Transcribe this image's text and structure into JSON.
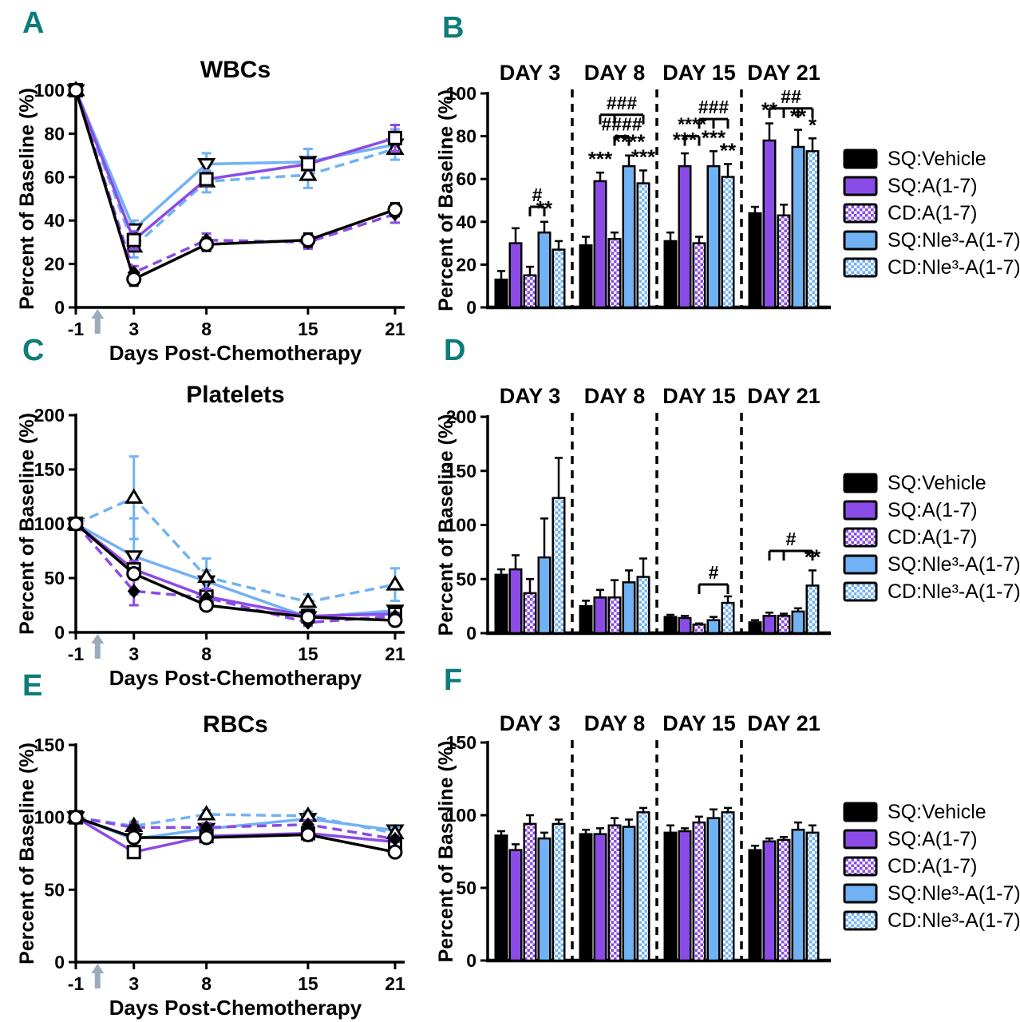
{
  "colors": {
    "purple": "#8b4be6",
    "blue": "#71b2f4",
    "teal": "#0d7c7a",
    "arrow": "#9aacbc",
    "black": "#000000"
  },
  "panel_letters": {
    "a": "A",
    "b": "B",
    "c": "C",
    "d": "D",
    "e": "E",
    "f": "F"
  },
  "legend": {
    "items": [
      {
        "label": "SQ:Vehicle",
        "swatch": "black"
      },
      {
        "label": "SQ:A(1-7)",
        "swatch": "purple"
      },
      {
        "label": "CD:A(1-7)",
        "swatch": "purple-check"
      },
      {
        "label": "SQ:Nle³-A(1-7)",
        "swatch": "blue"
      },
      {
        "label": "CD:Nle³-A(1-7)",
        "swatch": "blue-check"
      }
    ]
  },
  "chart_data": [
    {
      "id": "A",
      "type": "line",
      "title": "WBCs",
      "xlabel": "Days Post-Chemotherapy",
      "ylabel": "Percent of Baseline (%)",
      "x": [
        -1,
        3,
        8,
        15,
        21
      ],
      "xticklabels": [
        "-1",
        "3",
        "8",
        "15",
        "21"
      ],
      "ylim": [
        0,
        100
      ],
      "yticks": [
        0,
        20,
        40,
        60,
        80,
        100
      ],
      "arrow_day": 0.5,
      "series": [
        {
          "name": "SQ:Vehicle",
          "color": "black",
          "style": "solid",
          "marker": "circle-open",
          "values": [
            100,
            13,
            29,
            31,
            45
          ],
          "errors": [
            0,
            3,
            3,
            3,
            3
          ]
        },
        {
          "name": "SQ:A(1-7)",
          "color": "purple",
          "style": "solid",
          "marker": "square-open",
          "values": [
            100,
            31,
            59,
            66,
            78
          ],
          "errors": [
            0,
            4,
            3,
            3,
            6
          ]
        },
        {
          "name": "CD:A(1-7)",
          "color": "purple",
          "style": "dashed",
          "marker": "diamond-filled",
          "values": [
            100,
            16,
            31,
            30,
            43
          ],
          "errors": [
            0,
            3,
            3,
            3,
            4
          ]
        },
        {
          "name": "SQ:Nle³-A(1-7)",
          "color": "blue",
          "style": "solid",
          "marker": "triangle-down-open",
          "values": [
            100,
            36,
            66,
            67,
            75
          ],
          "errors": [
            0,
            4,
            5,
            6,
            7
          ]
        },
        {
          "name": "CD:Nle³-A(1-7)",
          "color": "blue",
          "style": "dashed",
          "marker": "triangle-up-open",
          "values": [
            100,
            28,
            58,
            61,
            73
          ],
          "errors": [
            0,
            5,
            5,
            6,
            5
          ]
        }
      ]
    },
    {
      "id": "B",
      "type": "bar",
      "ylabel": "Percent of Baseline (%)",
      "groups": [
        "DAY 3",
        "DAY 8",
        "DAY 15",
        "DAY 21"
      ],
      "ylim": [
        0,
        100
      ],
      "yticks": [
        0,
        20,
        40,
        60,
        80,
        100
      ],
      "series": [
        {
          "name": "SQ:Vehicle",
          "fill": "black",
          "values": [
            13,
            29,
            31,
            44
          ],
          "errors": [
            4,
            4,
            4,
            3
          ]
        },
        {
          "name": "SQ:A(1-7)",
          "fill": "purple",
          "values": [
            30,
            59,
            66,
            78
          ],
          "errors": [
            7,
            4,
            6,
            8
          ]
        },
        {
          "name": "CD:A(1-7)",
          "fill": "purple-check",
          "values": [
            15,
            32,
            30,
            43
          ],
          "errors": [
            4,
            3,
            3,
            5
          ]
        },
        {
          "name": "SQ:Nle³-A(1-7)",
          "fill": "blue",
          "values": [
            35,
            66,
            66,
            75
          ],
          "errors": [
            5,
            5,
            7,
            8
          ]
        },
        {
          "name": "CD:Nle³-A(1-7)",
          "fill": "blue-check",
          "values": [
            27,
            58,
            61,
            73
          ],
          "errors": [
            4,
            6,
            6,
            6
          ]
        }
      ],
      "stars": [
        {
          "group": 0,
          "bar": 3,
          "text": "**"
        },
        {
          "group": 1,
          "bar": 1,
          "text": "***"
        },
        {
          "group": 1,
          "bar": 3,
          "text": "****"
        },
        {
          "group": 1,
          "bar": 4,
          "text": "***"
        },
        {
          "group": 2,
          "bar": 1,
          "text": "***"
        },
        {
          "group": 2,
          "bar": 3,
          "text": "***"
        },
        {
          "group": 2,
          "bar": 4,
          "text": "**"
        },
        {
          "group": 3,
          "bar": 1,
          "text": "**"
        },
        {
          "group": 3,
          "bar": 3,
          "text": "**"
        },
        {
          "group": 3,
          "bar": 4,
          "text": "*"
        }
      ],
      "brackets": [
        {
          "group": 0,
          "from": 2,
          "to": 3,
          "mids": [],
          "y": 47,
          "label": "#"
        },
        {
          "group": 1,
          "from": 1,
          "to": 4,
          "mids": [
            2
          ],
          "y": 90,
          "label": "###"
        },
        {
          "group": 1,
          "from": 2,
          "to": 3,
          "mids": [],
          "y": 80,
          "label": "####"
        },
        {
          "group": 2,
          "from": 1,
          "to": 2,
          "mids": [],
          "y": 80,
          "label": "****"
        },
        {
          "group": 2,
          "from": 2,
          "to": 4,
          "mids": [
            3
          ],
          "y": 88,
          "label": "###"
        },
        {
          "group": 3,
          "from": 1,
          "to": 4,
          "mids": [
            2,
            3
          ],
          "y": 93,
          "label": "##"
        }
      ]
    },
    {
      "id": "C",
      "type": "line",
      "title": "Platelets",
      "xlabel": "Days Post-Chemotherapy",
      "ylabel": "Percent of Baseline (%)",
      "x": [
        -1,
        3,
        8,
        15,
        21
      ],
      "xticklabels": [
        "-1",
        "3",
        "8",
        "15",
        "21"
      ],
      "ylim": [
        0,
        200
      ],
      "yticks": [
        0,
        50,
        100,
        150,
        200
      ],
      "arrow_day": 0.5,
      "series": [
        {
          "name": "SQ:Vehicle",
          "color": "black",
          "style": "solid",
          "marker": "circle-open",
          "values": [
            100,
            54,
            25,
            14,
            11
          ],
          "errors": [
            0,
            5,
            4,
            3,
            2
          ]
        },
        {
          "name": "SQ:A(1-7)",
          "color": "purple",
          "style": "solid",
          "marker": "square-open",
          "values": [
            100,
            58,
            33,
            15,
            17
          ],
          "errors": [
            0,
            8,
            5,
            3,
            3
          ]
        },
        {
          "name": "CD:A(1-7)",
          "color": "purple",
          "style": "dashed",
          "marker": "diamond-filled",
          "values": [
            100,
            38,
            32,
            9,
            15
          ],
          "errors": [
            0,
            13,
            8,
            3,
            3
          ]
        },
        {
          "name": "SQ:Nle³-A(1-7)",
          "color": "blue",
          "style": "solid",
          "marker": "triangle-down-open",
          "values": [
            100,
            70,
            47,
            14,
            20
          ],
          "errors": [
            0,
            35,
            10,
            4,
            4
          ]
        },
        {
          "name": "CD:Nle³-A(1-7)",
          "color": "blue",
          "style": "dashed",
          "marker": "triangle-up-open",
          "values": [
            100,
            124,
            51,
            28,
            44
          ],
          "errors": [
            0,
            38,
            17,
            7,
            15
          ]
        }
      ]
    },
    {
      "id": "D",
      "type": "bar",
      "ylabel": "Percent of Baseline (%)",
      "groups": [
        "DAY 3",
        "DAY 8",
        "DAY 15",
        "DAY 21"
      ],
      "ylim": [
        0,
        200
      ],
      "yticks": [
        0,
        50,
        100,
        150,
        200
      ],
      "series": [
        {
          "name": "SQ:Vehicle",
          "fill": "black",
          "values": [
            54,
            25,
            15,
            10
          ],
          "errors": [
            5,
            5,
            2,
            2
          ]
        },
        {
          "name": "SQ:A(1-7)",
          "fill": "purple",
          "values": [
            59,
            33,
            14,
            16
          ],
          "errors": [
            13,
            7,
            2,
            3
          ]
        },
        {
          "name": "CD:A(1-7)",
          "fill": "purple-check",
          "values": [
            37,
            33,
            8,
            16
          ],
          "errors": [
            13,
            16,
            1,
            2
          ]
        },
        {
          "name": "SQ:Nle³-A(1-7)",
          "fill": "blue",
          "values": [
            70,
            47,
            12,
            20
          ],
          "errors": [
            36,
            11,
            3,
            3
          ]
        },
        {
          "name": "CD:Nle³-A(1-7)",
          "fill": "blue-check",
          "values": [
            125,
            52,
            28,
            44
          ],
          "errors": [
            37,
            17,
            6,
            14
          ]
        }
      ],
      "stars": [
        {
          "group": 3,
          "bar": 4,
          "text": "**"
        }
      ],
      "brackets": [
        {
          "group": 2,
          "from": 2,
          "to": 4,
          "mids": [],
          "y": 45,
          "label": "#"
        },
        {
          "group": 3,
          "from": 1,
          "to": 4,
          "mids": [
            2
          ],
          "y": 76,
          "label": "#"
        }
      ]
    },
    {
      "id": "E",
      "type": "line",
      "title": "RBCs",
      "xlabel": "Days Post-Chemotherapy",
      "ylabel": "Percent of Baseline (%)",
      "x": [
        -1,
        3,
        8,
        15,
        21
      ],
      "xticklabels": [
        "-1",
        "3",
        "8",
        "15",
        "21"
      ],
      "ylim": [
        0,
        150
      ],
      "yticks": [
        0,
        50,
        100,
        150
      ],
      "arrow_day": 0.5,
      "series": [
        {
          "name": "SQ:Vehicle",
          "color": "black",
          "style": "solid",
          "marker": "circle-open",
          "values": [
            100,
            86,
            86,
            88,
            76
          ],
          "errors": [
            0,
            2,
            3,
            4,
            3
          ]
        },
        {
          "name": "SQ:A(1-7)",
          "color": "purple",
          "style": "solid",
          "marker": "square-open",
          "values": [
            100,
            76,
            87,
            89,
            83
          ],
          "errors": [
            0,
            3,
            2,
            2,
            2
          ]
        },
        {
          "name": "CD:A(1-7)",
          "color": "purple",
          "style": "dashed",
          "marker": "diamond-filled",
          "values": [
            100,
            93,
            93,
            95,
            85
          ],
          "errors": [
            0,
            3,
            3,
            3,
            2
          ]
        },
        {
          "name": "SQ:Nle³-A(1-7)",
          "color": "blue",
          "style": "solid",
          "marker": "triangle-down-open",
          "values": [
            100,
            85,
            92,
            99,
            91
          ],
          "errors": [
            0,
            3,
            3,
            4,
            2
          ]
        },
        {
          "name": "CD:Nle³-A(1-7)",
          "color": "blue",
          "style": "dashed",
          "marker": "triangle-up-open",
          "values": [
            100,
            94,
            102,
            101,
            89
          ],
          "errors": [
            0,
            3,
            3,
            3,
            4
          ]
        }
      ]
    },
    {
      "id": "F",
      "type": "bar",
      "ylabel": "Percent of Baseline (%)",
      "groups": [
        "DAY 3",
        "DAY 8",
        "DAY 15",
        "DAY 21"
      ],
      "ylim": [
        0,
        150
      ],
      "yticks": [
        0,
        50,
        100,
        150
      ],
      "series": [
        {
          "name": "SQ:Vehicle",
          "fill": "black",
          "values": [
            86,
            87,
            88,
            76
          ],
          "errors": [
            3,
            3,
            5,
            3
          ]
        },
        {
          "name": "SQ:A(1-7)",
          "fill": "purple",
          "values": [
            76,
            87,
            89,
            82
          ],
          "errors": [
            4,
            4,
            2,
            2
          ]
        },
        {
          "name": "CD:A(1-7)",
          "fill": "purple-check",
          "values": [
            94,
            93,
            95,
            83
          ],
          "errors": [
            6,
            5,
            4,
            2
          ]
        },
        {
          "name": "SQ:Nle³-A(1-7)",
          "fill": "blue",
          "values": [
            84,
            92,
            98,
            90
          ],
          "errors": [
            4,
            5,
            6,
            5
          ]
        },
        {
          "name": "CD:Nle³-A(1-7)",
          "fill": "blue-check",
          "values": [
            94,
            102,
            102,
            88
          ],
          "errors": [
            3,
            3,
            3,
            5
          ]
        }
      ],
      "stars": [],
      "brackets": []
    }
  ]
}
